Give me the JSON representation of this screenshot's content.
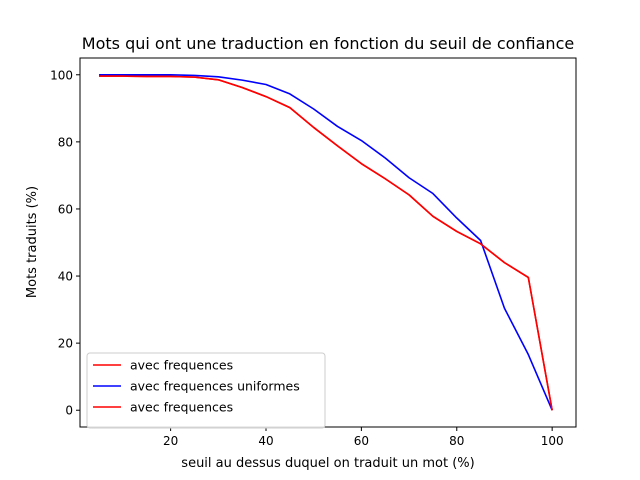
{
  "chart_data": {
    "type": "line",
    "title": "Mots qui ont une traduction en fonction du seuil de confiance",
    "xlabel": "seuil au dessus duquel on traduit un mot (%)",
    "ylabel": "Mots traduits (%)",
    "xlim": [
      1,
      105
    ],
    "ylim": [
      -5,
      105
    ],
    "xticks": [
      20,
      40,
      60,
      80,
      100
    ],
    "yticks": [
      0,
      20,
      40,
      60,
      80,
      100
    ],
    "grid": false,
    "legend_position": "lower-left",
    "series": [
      {
        "name": "avec frequences",
        "color": "#ff0000",
        "x": [
          5,
          10,
          15,
          20,
          25,
          30,
          35,
          40,
          45,
          50,
          55,
          60,
          65,
          70,
          75,
          80,
          85,
          90,
          95,
          100
        ],
        "y": [
          99.6,
          99.6,
          99.5,
          99.5,
          99.3,
          98.5,
          96.2,
          93.5,
          90.2,
          84.3,
          78.8,
          73.5,
          69.0,
          64.2,
          57.8,
          53.3,
          49.6,
          44.0,
          39.6,
          0.0
        ]
      },
      {
        "name": "avec frequences uniformes",
        "color": "#0000ff",
        "x": [
          5,
          10,
          15,
          20,
          25,
          30,
          35,
          40,
          45,
          50,
          55,
          60,
          65,
          70,
          75,
          80,
          85,
          90,
          95,
          100
        ],
        "y": [
          100.0,
          100.0,
          100.0,
          100.0,
          99.8,
          99.4,
          98.4,
          97.1,
          94.3,
          89.8,
          84.6,
          80.4,
          75.2,
          69.3,
          64.6,
          57.3,
          50.6,
          30.4,
          16.6,
          0.0
        ]
      },
      {
        "name": "avec frequences",
        "color": "#ff0000",
        "x": [
          5,
          10,
          15,
          20,
          25,
          30,
          35,
          40,
          45,
          50,
          55,
          60,
          65,
          70,
          75,
          80,
          85,
          90,
          95,
          100
        ],
        "y": [
          99.6,
          99.6,
          99.5,
          99.5,
          99.3,
          98.5,
          96.2,
          93.5,
          90.2,
          84.3,
          78.8,
          73.5,
          69.0,
          64.2,
          57.8,
          53.3,
          49.6,
          44.0,
          39.6,
          0.0
        ]
      }
    ]
  }
}
